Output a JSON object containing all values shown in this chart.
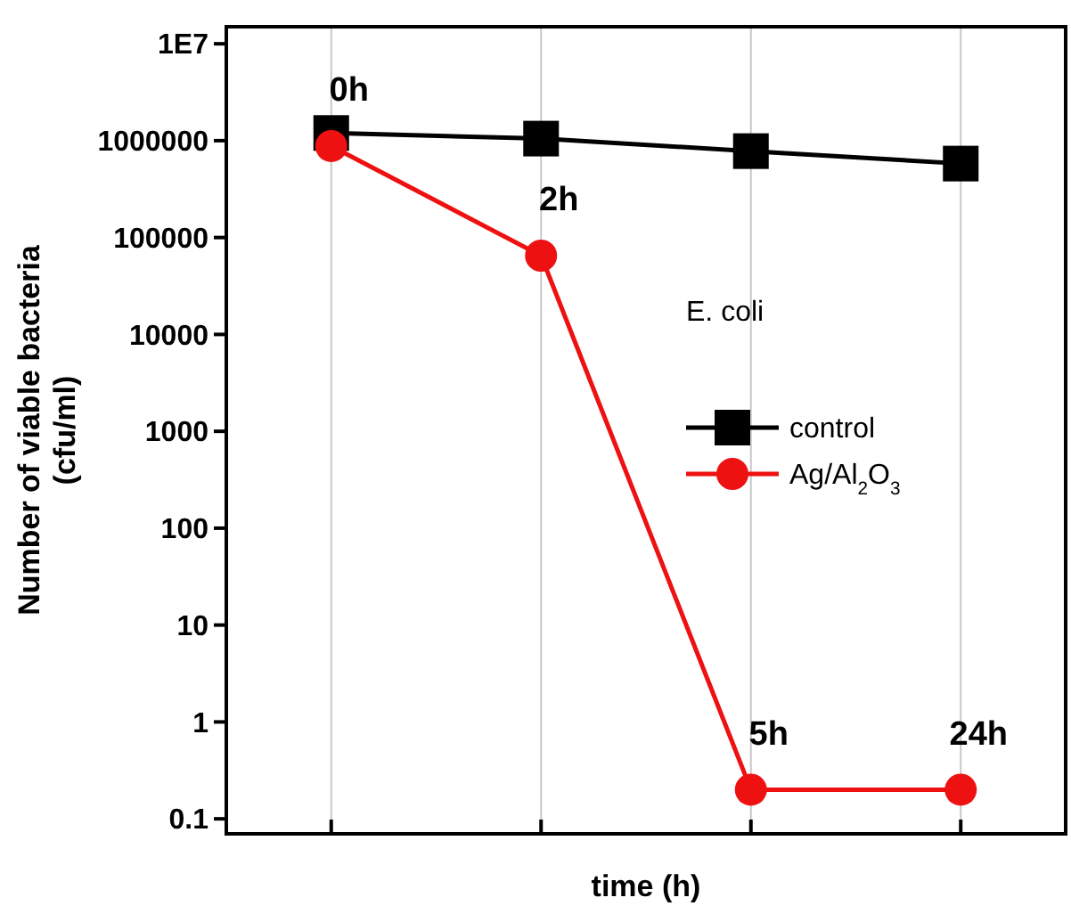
{
  "chart_data": {
    "type": "line",
    "xlabel": "time (h)",
    "ylabel": "Number of viable bacteria\n(cfu/ml)",
    "legend_title": "E. coli",
    "log": "y",
    "grid": "x",
    "legend": "right",
    "line_style": "solid",
    "categories": [
      null,
      null,
      null,
      null
    ],
    "ylim": [
      0.07,
      15000000
    ],
    "yticks": [
      0.1,
      1,
      10,
      100,
      1000,
      10000,
      100000,
      1000000,
      {
        "value": 10000000,
        "label": "1E7"
      }
    ],
    "series": [
      {
        "name": "control",
        "color": "#000000",
        "marker": "square",
        "values": [
          1200000,
          1050000,
          780000,
          580000
        ]
      },
      {
        "name": "Ag/Al$_{2}$O$_{3}$",
        "color": "#ee1111",
        "marker": "circle",
        "values": [
          880000,
          65000,
          0.2,
          0.2
        ]
      }
    ],
    "annotations": [
      "0h",
      "2h",
      "5h",
      "24h"
    ]
  }
}
